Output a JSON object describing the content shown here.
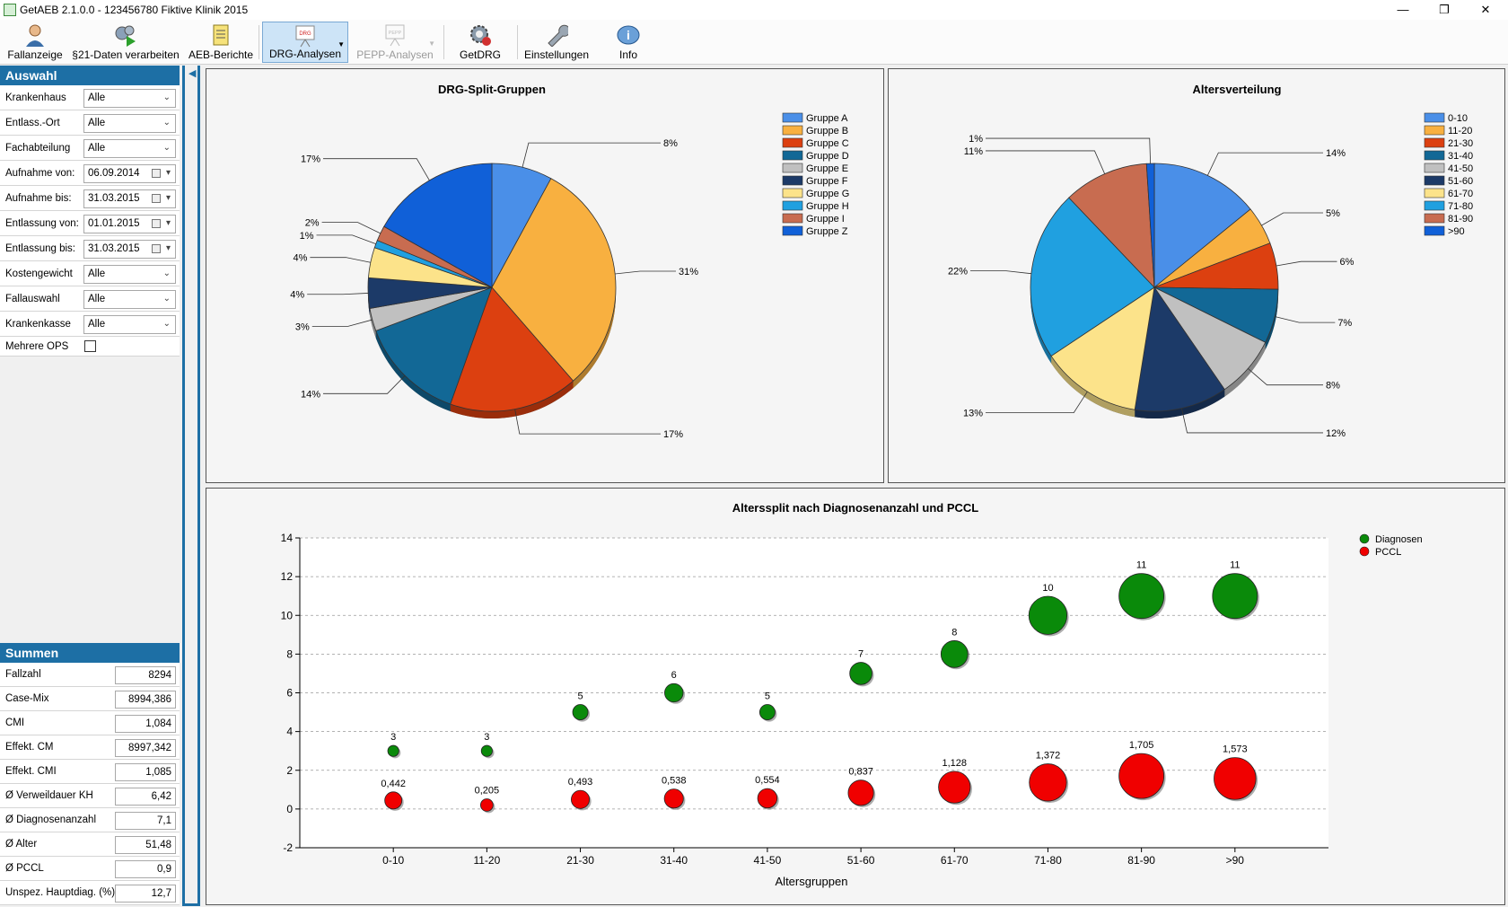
{
  "window": {
    "title": "GetAEB 2.1.0.0 - 123456780 Fiktive Klinik 2015"
  },
  "toolbar": {
    "items": [
      {
        "label": "Fallanzeige",
        "icon": "user-icon"
      },
      {
        "label": "§21-Daten verarbeiten",
        "icon": "gears-play-icon"
      },
      {
        "label": "AEB-Berichte",
        "icon": "document-icon"
      },
      {
        "label": "DRG-Analysen",
        "icon": "drg-board-icon",
        "active": true
      },
      {
        "label": "PEPP-Analysen",
        "icon": "pepp-board-icon",
        "disabled": true
      },
      {
        "label": "GetDRG",
        "icon": "gear-globe-icon"
      },
      {
        "label": "Einstellungen",
        "icon": "wrench-icon"
      },
      {
        "label": "Info",
        "icon": "info-icon"
      }
    ]
  },
  "auswahl": {
    "title": "Auswahl",
    "filters": [
      {
        "label": "Krankenhaus",
        "value": "Alle",
        "kind": "combo"
      },
      {
        "label": "Entlass.-Ort",
        "value": "Alle",
        "kind": "combo"
      },
      {
        "label": "Fachabteilung",
        "value": "Alle",
        "kind": "combo"
      },
      {
        "label": "Aufnahme von:",
        "value": "06.09.2014",
        "kind": "date"
      },
      {
        "label": "Aufnahme bis:",
        "value": "31.03.2015",
        "kind": "date"
      },
      {
        "label": "Entlassung von:",
        "value": "01.01.2015",
        "kind": "date"
      },
      {
        "label": "Entlassung bis:",
        "value": "31.03.2015",
        "kind": "date"
      },
      {
        "label": "Kostengewicht",
        "value": "Alle",
        "kind": "combo"
      },
      {
        "label": "Fallauswahl",
        "value": "Alle",
        "kind": "combo"
      },
      {
        "label": "Krankenkasse",
        "value": "Alle",
        "kind": "combo"
      }
    ],
    "mehrere_ops": {
      "label": "Mehrere OPS",
      "checked": false
    }
  },
  "summen": {
    "title": "Summen",
    "rows": [
      {
        "label": "Fallzahl",
        "value": "8294"
      },
      {
        "label": "Case-Mix",
        "value": "8994,386"
      },
      {
        "label": "CMI",
        "value": "1,084"
      },
      {
        "label": "Effekt. CM",
        "value": "8997,342"
      },
      {
        "label": "Effekt. CMI",
        "value": "1,085"
      },
      {
        "label": "Ø Verweildauer KH",
        "value": "6,42"
      },
      {
        "label": "Ø Diagnosenanzahl",
        "value": "7,1"
      },
      {
        "label": "Ø Alter",
        "value": "51,48"
      },
      {
        "label": "Ø PCCL",
        "value": "0,9"
      },
      {
        "label": "Unspez. Hauptdiag. (%)",
        "value": "12,7"
      }
    ]
  },
  "chart_data": [
    {
      "type": "pie",
      "title": "DRG-Split-Gruppen",
      "legend_position": "top-right",
      "slices": [
        {
          "label": "Gruppe A",
          "value": 8,
          "label_text": "8%",
          "color": "#4a8fe8"
        },
        {
          "label": "Gruppe B",
          "value": 31,
          "label_text": "31%",
          "color": "#f8b040"
        },
        {
          "label": "Gruppe C",
          "value": 17,
          "label_text": "17%",
          "color": "#dc4010"
        },
        {
          "label": "Gruppe D",
          "value": 14,
          "label_text": "14%",
          "color": "#126896"
        },
        {
          "label": "Gruppe E",
          "value": 3,
          "label_text": "3%",
          "color": "#c0c0c0"
        },
        {
          "label": "Gruppe F",
          "value": 4,
          "label_text": "4%",
          "color": "#1c3a68"
        },
        {
          "label": "Gruppe G",
          "value": 4,
          "label_text": "4%",
          "color": "#fce38a"
        },
        {
          "label": "Gruppe H",
          "value": 1,
          "label_text": "1%",
          "color": "#20a0e0"
        },
        {
          "label": "Gruppe I",
          "value": 2,
          "label_text": "2%",
          "color": "#c86c50"
        },
        {
          "label": "Gruppe Z",
          "value": 17,
          "label_text": "17%",
          "color": "#1060d8"
        }
      ]
    },
    {
      "type": "pie",
      "title": "Altersverteilung",
      "legend_position": "top-right",
      "slices": [
        {
          "label": "0-10",
          "value": 14,
          "label_text": "14%",
          "color": "#4a8fe8"
        },
        {
          "label": "11-20",
          "value": 5,
          "label_text": "5%",
          "color": "#f8b040"
        },
        {
          "label": "21-30",
          "value": 6,
          "label_text": "6%",
          "color": "#dc4010"
        },
        {
          "label": "31-40",
          "value": 7,
          "label_text": "7%",
          "color": "#126896"
        },
        {
          "label": "41-50",
          "value": 8,
          "label_text": "8%",
          "color": "#c0c0c0"
        },
        {
          "label": "51-60",
          "value": 12,
          "label_text": "12%",
          "color": "#1c3a68"
        },
        {
          "label": "61-70",
          "value": 13,
          "label_text": "13%",
          "color": "#fce38a"
        },
        {
          "label": "71-80",
          "value": 22,
          "label_text": "22%",
          "color": "#20a0e0"
        },
        {
          "label": "81-90",
          "value": 11,
          "label_text": "11%",
          "color": "#c86c50"
        },
        {
          "label": ">90",
          "value": 1,
          "label_text": "1%",
          "color": "#1060d8"
        }
      ]
    },
    {
      "type": "scatter",
      "title": "Alterssplit nach Diagnosenanzahl und PCCL",
      "xlabel": "Altersgruppen",
      "ylabel": "",
      "ylim": [
        -2,
        14
      ],
      "yticks": [
        -2,
        0,
        2,
        4,
        6,
        8,
        10,
        12,
        14
      ],
      "grid": true,
      "legend_position": "top-right",
      "categories": [
        "0-10",
        "11-20",
        "21-30",
        "31-40",
        "41-50",
        "51-60",
        "61-70",
        "71-80",
        "81-90",
        ">90"
      ],
      "series": [
        {
          "name": "Diagnosen",
          "color": "#0a8a0a",
          "values": [
            3,
            3,
            5,
            6,
            5,
            7,
            8,
            10,
            11,
            11
          ],
          "labels": [
            "3",
            "3",
            "5",
            "6",
            "5",
            "7",
            "8",
            "10",
            "11",
            "11"
          ]
        },
        {
          "name": "PCCL",
          "color": "#f00000",
          "values": [
            0.442,
            0.205,
            0.493,
            0.538,
            0.554,
            0.837,
            1.128,
            1.372,
            1.705,
            1.573
          ],
          "labels": [
            "0,442",
            "0,205",
            "0,493",
            "0,538",
            "0,554",
            "0,837",
            "1,128",
            "1,372",
            "1,705",
            "1,573"
          ]
        }
      ]
    }
  ]
}
